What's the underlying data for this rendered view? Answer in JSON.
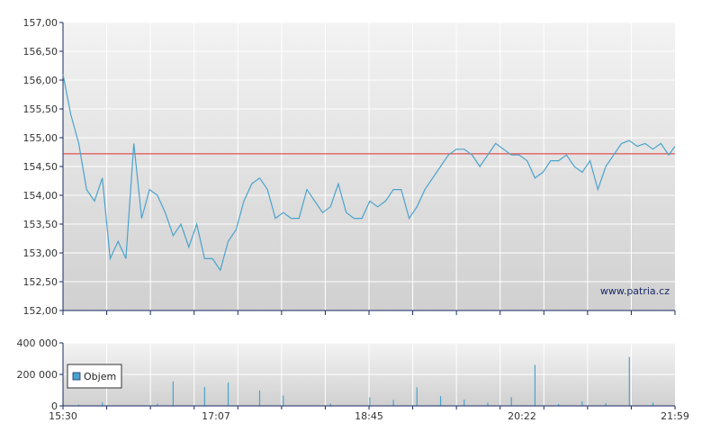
{
  "chart_data": [
    {
      "type": "line",
      "title": "",
      "xlabel": "",
      "ylabel": "",
      "ylim": [
        152.0,
        157.0
      ],
      "y_ticks": [
        "157,00",
        "156,50",
        "156,00",
        "155,50",
        "155,00",
        "154,50",
        "154,00",
        "153,50",
        "153,00",
        "152,50",
        "152,00"
      ],
      "x_ticks": [
        "15:30",
        "17:07",
        "18:45",
        "20:22",
        "21:59"
      ],
      "x_range": [
        "15:30",
        "21:59"
      ],
      "reference_line": 154.72,
      "grid": true,
      "watermark": "www.patria.cz",
      "series": [
        {
          "color": "#4aa3cc",
          "x": [
            "15:30",
            "15:35",
            "15:40",
            "15:45",
            "15:50",
            "15:55",
            "16:00",
            "16:05",
            "16:10",
            "16:15",
            "16:20",
            "16:25",
            "16:30",
            "16:35",
            "16:40",
            "16:45",
            "16:50",
            "16:55",
            "17:00",
            "17:05",
            "17:10",
            "17:15",
            "17:20",
            "17:25",
            "17:30",
            "17:35",
            "17:40",
            "17:45",
            "17:50",
            "17:55",
            "18:00",
            "18:05",
            "18:10",
            "18:15",
            "18:20",
            "18:25",
            "18:30",
            "18:35",
            "18:40",
            "18:45",
            "18:50",
            "18:55",
            "19:00",
            "19:05",
            "19:10",
            "19:15",
            "19:20",
            "19:25",
            "19:30",
            "19:35",
            "19:40",
            "19:45",
            "19:50",
            "19:55",
            "20:00",
            "20:05",
            "20:10",
            "20:15",
            "20:20",
            "20:25",
            "20:30",
            "20:35",
            "20:40",
            "20:45",
            "20:50",
            "20:55",
            "21:00",
            "21:05",
            "21:10",
            "21:15",
            "21:20",
            "21:25",
            "21:30",
            "21:35",
            "21:40",
            "21:45",
            "21:50",
            "21:55",
            "21:59"
          ],
          "values": [
            156.1,
            155.4,
            154.9,
            154.1,
            153.9,
            154.3,
            152.9,
            153.2,
            152.9,
            154.9,
            153.6,
            154.1,
            154.0,
            153.7,
            153.3,
            153.5,
            153.1,
            153.5,
            152.9,
            152.9,
            152.7,
            153.2,
            153.4,
            153.9,
            154.2,
            154.3,
            154.1,
            153.6,
            153.7,
            153.6,
            153.6,
            154.1,
            153.9,
            153.7,
            153.8,
            154.2,
            153.7,
            153.6,
            153.6,
            153.9,
            153.8,
            153.9,
            154.1,
            154.1,
            153.6,
            153.8,
            154.1,
            154.3,
            154.5,
            154.7,
            154.8,
            154.8,
            154.7,
            154.5,
            154.7,
            154.9,
            154.8,
            154.7,
            154.7,
            154.6,
            154.3,
            154.4,
            154.6,
            154.6,
            154.7,
            154.5,
            154.4,
            154.6,
            154.1,
            154.5,
            154.7,
            154.9,
            154.95,
            154.85,
            154.9,
            154.8,
            154.9,
            154.7,
            154.85
          ]
        }
      ]
    },
    {
      "type": "bar",
      "title": "",
      "xlabel": "",
      "ylabel": "",
      "ylim": [
        0,
        400000
      ],
      "y_ticks": [
        "400 000",
        "200 000",
        "0"
      ],
      "x_ticks": [
        "15:30",
        "17:07",
        "18:45",
        "20:22",
        "21:59"
      ],
      "grid": true,
      "legend": "left",
      "series": [
        {
          "name": "Objem",
          "color": "#4aa3cc",
          "x": [
            "15:40",
            "15:55",
            "16:30",
            "16:40",
            "17:00",
            "17:15",
            "17:35",
            "17:50",
            "18:20",
            "18:45",
            "19:00",
            "19:15",
            "19:30",
            "19:45",
            "20:00",
            "20:15",
            "20:30",
            "20:45",
            "21:00",
            "21:15",
            "21:30",
            "21:45"
          ],
          "values": [
            8000,
            22000,
            14000,
            155000,
            120000,
            148000,
            98000,
            65000,
            15000,
            55000,
            38000,
            118000,
            62000,
            40000,
            20000,
            55000,
            260000,
            12000,
            28000,
            18000,
            310000,
            22000
          ]
        }
      ]
    }
  ]
}
